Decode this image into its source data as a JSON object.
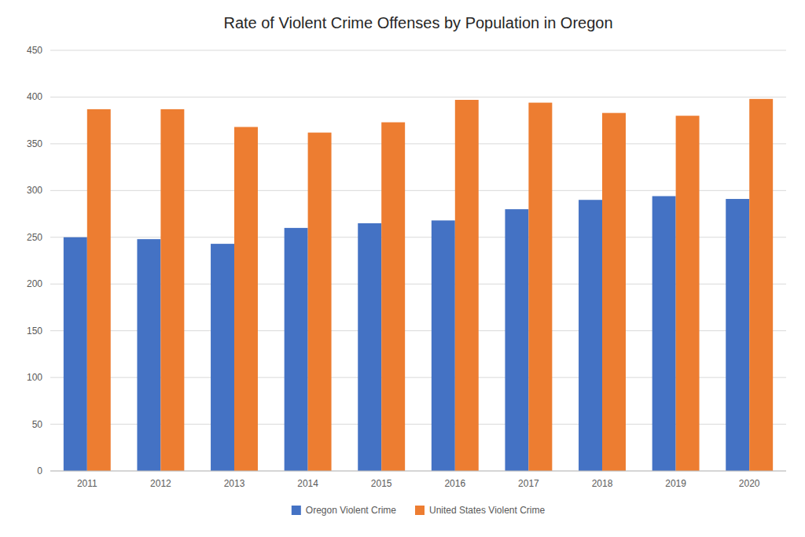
{
  "chart_data": {
    "type": "bar",
    "title": "Rate of Violent Crime Offenses by Population in Oregon",
    "categories": [
      "2011",
      "2012",
      "2013",
      "2014",
      "2015",
      "2016",
      "2017",
      "2018",
      "2019",
      "2020"
    ],
    "series": [
      {
        "name": "Oregon Violent Crime",
        "color": "#4472C4",
        "values": [
          250,
          248,
          243,
          260,
          265,
          268,
          280,
          290,
          294,
          291
        ]
      },
      {
        "name": "United States Violent Crime",
        "color": "#ED7D31",
        "values": [
          387,
          387,
          368,
          362,
          373,
          397,
          394,
          383,
          380,
          398
        ]
      }
    ],
    "ylim": [
      0,
      450
    ],
    "yticks": [
      0,
      50,
      100,
      150,
      200,
      250,
      300,
      350,
      400,
      450
    ],
    "grid": true,
    "legend": "bottom"
  }
}
